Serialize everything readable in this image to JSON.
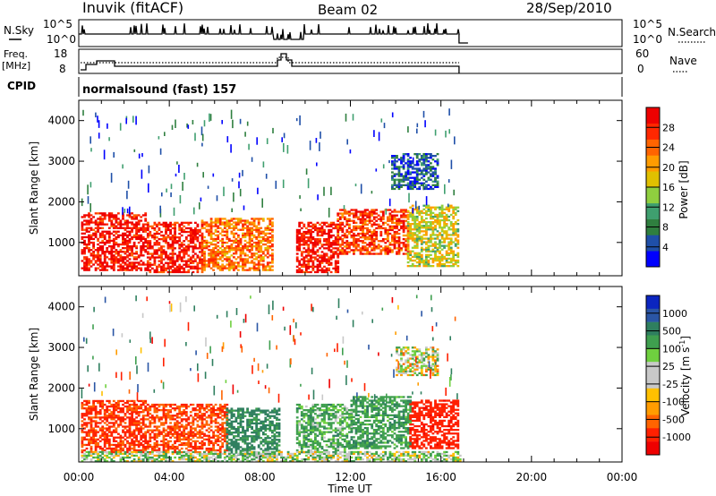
{
  "header": {
    "station": "Inuvik (fitACF)",
    "beam": "Beam 02",
    "date": "28/Sep/2010"
  },
  "mode": {
    "cpid_label": "CPID",
    "program": "normalsound (fast) 157"
  },
  "nsky_panel": {
    "left_label": "N.Sky",
    "right_label": "N.Search",
    "left_ticks": [
      "10^5",
      "10^0"
    ],
    "right_ticks": [
      "10^5",
      "10^0"
    ]
  },
  "freq_panel": {
    "left_label_1": "Freq.",
    "left_label_2": "[MHz]",
    "right_label": "Nave",
    "left_ticks": [
      "18",
      "8"
    ],
    "right_ticks": [
      "60",
      "0"
    ]
  },
  "time_axis": {
    "label": "Time UT",
    "ticks": [
      "00:00",
      "04:00",
      "08:00",
      "12:00",
      "16:00",
      "20:00",
      "00:00"
    ],
    "range_hours": [
      0,
      24
    ],
    "data_end_hour": 16.8
  },
  "range_axis": {
    "label": "Slant Range [km]",
    "ticks": [
      "1000",
      "2000",
      "3000",
      "4000"
    ],
    "tick_values": [
      1000,
      2000,
      3000,
      4000
    ],
    "range_km": [
      180,
      4500
    ]
  },
  "power_scale": {
    "label": "Power [dB]",
    "ticks": [
      "4",
      "8",
      "12",
      "16",
      "20",
      "24",
      "28"
    ],
    "colors": [
      "#0000ff",
      "#1f4fa8",
      "#2f7f3f",
      "#3f9f6f",
      "#8fcf3f",
      "#e0c000",
      "#ff9c00",
      "#ff6400",
      "#ff2800",
      "#ee0000"
    ]
  },
  "velocity_scale": {
    "label_text": "Velocity [m s",
    "label_sup": "-1",
    "label_end": "]",
    "ticks": [
      "1000",
      "500",
      "100",
      "25",
      "-25",
      "-100",
      "-500",
      "-1000"
    ],
    "colors": [
      "#0b25c0",
      "#2a55a5",
      "#2f7f5f",
      "#3f9f4f",
      "#6fd03f",
      "#c8c8c8",
      "#c8c8c8",
      "#ffc000",
      "#ff9c00",
      "#ff6400",
      "#ff2000",
      "#ee0000"
    ]
  },
  "chart_data": [
    {
      "type": "heatmap",
      "title": "Power",
      "xlabel": "Time UT",
      "ylabel": "Slant Range [km]",
      "xlim": [
        0,
        24
      ],
      "ylim": [
        180,
        4500
      ],
      "colorbar_label": "Power [dB]",
      "colorbar_range": [
        0,
        30
      ],
      "bands": [
        {
          "t0": 0.1,
          "t1": 3.0,
          "r0": 300,
          "r1": 1700,
          "value": 28
        },
        {
          "t0": 3.0,
          "t1": 5.4,
          "r0": 250,
          "r1": 1500,
          "value": 27
        },
        {
          "t0": 5.4,
          "t1": 8.5,
          "r0": 300,
          "r1": 1600,
          "value": 22
        },
        {
          "t0": 9.6,
          "t1": 11.4,
          "r0": 250,
          "r1": 1500,
          "value": 28
        },
        {
          "t0": 11.4,
          "t1": 14.5,
          "r0": 700,
          "r1": 1800,
          "value": 25
        },
        {
          "t0": 14.5,
          "t1": 16.8,
          "r0": 400,
          "r1": 1900,
          "value": 16
        },
        {
          "t0": 13.8,
          "t1": 15.8,
          "r0": 2300,
          "r1": 3200,
          "value": 5
        }
      ]
    },
    {
      "type": "heatmap",
      "title": "Velocity",
      "xlabel": "Time UT",
      "ylabel": "Slant Range [km]",
      "xlim": [
        0,
        24
      ],
      "ylim": [
        180,
        4500
      ],
      "colorbar_label": "Velocity [m s-1]",
      "colorbar_range": [
        -1000,
        1000
      ],
      "bands": [
        {
          "t0": 0.1,
          "t1": 3.0,
          "r0": 400,
          "r1": 1700,
          "value": -300
        },
        {
          "t0": 3.0,
          "t1": 6.5,
          "r0": 400,
          "r1": 1600,
          "value": -250
        },
        {
          "t0": 6.5,
          "t1": 8.8,
          "r0": 300,
          "r1": 1500,
          "value": 300
        },
        {
          "t0": 9.6,
          "t1": 12.0,
          "r0": 400,
          "r1": 1600,
          "value": 150
        },
        {
          "t0": 12.0,
          "t1": 14.6,
          "r0": 500,
          "r1": 1800,
          "value": 200
        },
        {
          "t0": 14.6,
          "t1": 16.8,
          "r0": 500,
          "r1": 1700,
          "value": -400
        },
        {
          "t0": 0.1,
          "t1": 16.8,
          "r0": 180,
          "r1": 450,
          "value": 60
        },
        {
          "t0": 14.0,
          "t1": 15.8,
          "r0": 2300,
          "r1": 3000,
          "value": 10
        }
      ]
    }
  ]
}
